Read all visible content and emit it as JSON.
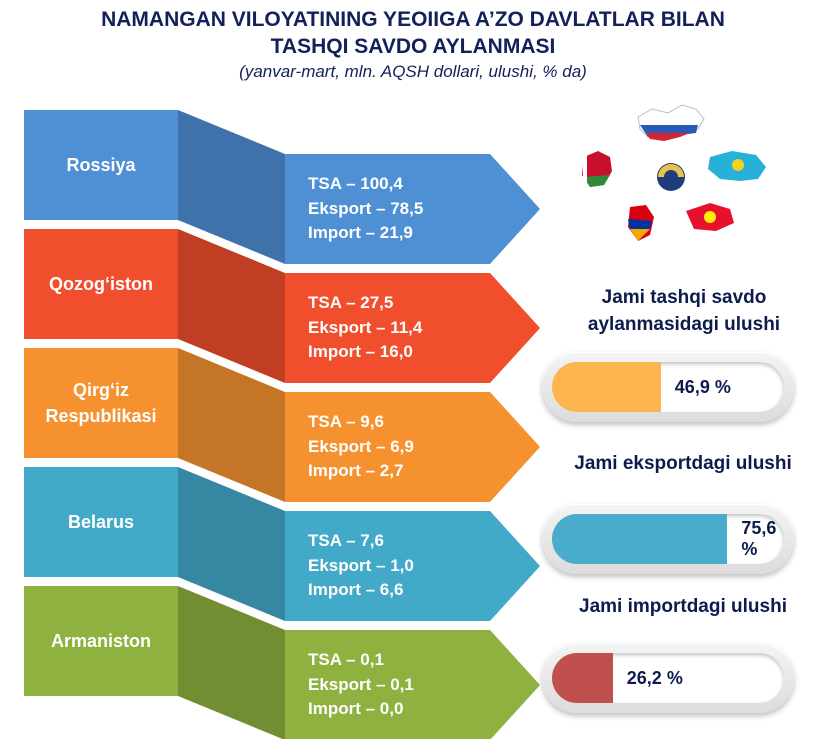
{
  "header": {
    "title_line1": "NAMANGAN VILOYATINING YEOIIGA A’ZO DAVLATLAR BILAN",
    "title_line2": "TASHQI SAVDO AYLANMASI",
    "subtitle": "(yanvar-mart, mln. AQSH dollari, ulushi, % da)"
  },
  "chart_data": {
    "type": "table",
    "columns": [
      "TSA",
      "Eksport",
      "Import"
    ],
    "rows": [
      {
        "country": "Rossiya",
        "color": "#4f8fd4",
        "tsa": "TSA – 100,4",
        "eksport": "Eksport – 78,5",
        "import": "Import – 21,9",
        "values": [
          100.4,
          78.5,
          21.9
        ]
      },
      {
        "country": "Qozog‘iston",
        "color": "#f04e2d",
        "tsa": "TSA – 27,5",
        "eksport": "Eksport – 11,4",
        "import": "Import – 16,0",
        "values": [
          27.5,
          11.4,
          16.0
        ]
      },
      {
        "country": "Qirg‘iz Respublikasi",
        "color": "#f5922f",
        "tsa": "TSA – 9,6",
        "eksport": "Eksport – 6,9",
        "import": "Import – 2,7",
        "values": [
          9.6,
          6.9,
          2.7
        ]
      },
      {
        "country": "Belarus",
        "color": "#43a9c9",
        "tsa": "TSA – 7,6",
        "eksport": "Eksport – 1,0",
        "import": "Import – 6,6",
        "values": [
          7.6,
          1.0,
          6.6
        ]
      },
      {
        "country": "Armaniston",
        "color": "#8fb13f",
        "tsa": "TSA – 0,1",
        "eksport": "Eksport – 0,1",
        "import": "Import – 0,0",
        "values": [
          0.1,
          0.1,
          0.0
        ]
      }
    ],
    "shares": [
      {
        "label": "Jami tashqi savdo aylanmasidagi ulushi",
        "value": 46.9,
        "text": "46,9 %",
        "color": "#fdb54f"
      },
      {
        "label": "Jami eksportdagi ulushi",
        "value": 75.6,
        "text": "75,6 %",
        "color": "#4aaccc"
      },
      {
        "label": "Jami importdagi ulushi",
        "value": 26.2,
        "text": "26,2 %",
        "color": "#c0504d"
      }
    ]
  },
  "map": {
    "icon": "eaeu-map-icon"
  }
}
